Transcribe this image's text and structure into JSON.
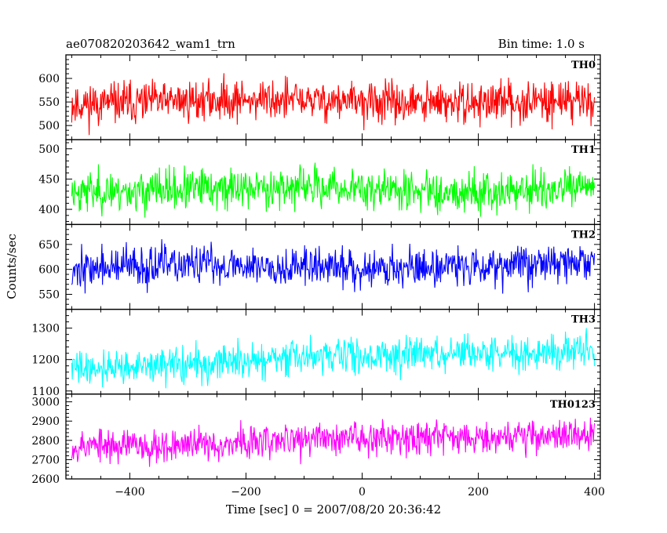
{
  "header": {
    "title": "ae070820203642_wam1_trn",
    "bin_time": "Bin time: 1.0 s"
  },
  "chart_data": {
    "type": "line",
    "ylabel": "Counts/sec",
    "xlabel": "Time [sec] 0 = 2007/08/20 20:36:42",
    "xlim": [
      -510,
      410
    ],
    "x_data_range": [
      -500,
      400
    ],
    "x_step": 1.0,
    "x_ticks": [
      -400,
      -200,
      0,
      200,
      400
    ],
    "x_tick_labels": [
      "−400",
      "−200",
      "0",
      "200",
      "400"
    ],
    "grid": false,
    "panels": [
      {
        "name": "TH0",
        "color": "#ff0000",
        "ylim": [
          470,
          650
        ],
        "y_ticks": [
          500,
          550,
          600
        ],
        "y_tick_labels": [
          "500",
          "550",
          "600"
        ],
        "mean_start": 550,
        "mean_end": 552,
        "amplitude": 55,
        "seed": 11
      },
      {
        "name": "TH1",
        "color": "#00ff00",
        "ylim": [
          375,
          515
        ],
        "y_ticks": [
          400,
          450,
          500
        ],
        "y_tick_labels": [
          "400",
          "450",
          "500"
        ],
        "mean_start": 433,
        "mean_end": 433,
        "amplitude": 42,
        "seed": 23
      },
      {
        "name": "TH2",
        "color": "#0000ff",
        "ylim": [
          520,
          690
        ],
        "y_ticks": [
          550,
          600,
          650
        ],
        "y_tick_labels": [
          "550",
          "600",
          "650"
        ],
        "mean_start": 603,
        "mean_end": 610,
        "amplitude": 50,
        "seed": 37
      },
      {
        "name": "TH3",
        "color": "#00ffff",
        "ylim": [
          1090,
          1360
        ],
        "y_ticks": [
          1100,
          1200,
          1300
        ],
        "y_tick_labels": [
          "1100",
          "1200",
          "1300"
        ],
        "mean_start": 1175,
        "mean_end": 1235,
        "amplitude": 70,
        "seed": 41
      },
      {
        "name": "TH0123",
        "color": "#ff00ff",
        "ylim": [
          2600,
          3040
        ],
        "y_ticks": [
          2600,
          2700,
          2800,
          2900,
          3000
        ],
        "y_tick_labels": [
          "2600",
          "2700",
          "2800",
          "2900",
          "3000"
        ],
        "mean_start": 2770,
        "mean_end": 2840,
        "amplitude": 110,
        "seed": 53
      }
    ]
  }
}
